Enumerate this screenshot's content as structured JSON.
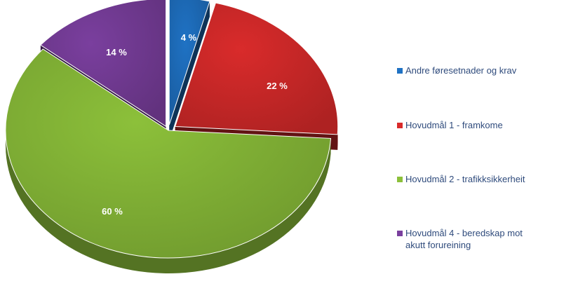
{
  "chart_data": {
    "type": "pie",
    "style": "3d-exploded",
    "slices": [
      {
        "label": "Andre føresetnader og krav",
        "value": 4,
        "value_label": "4 %",
        "color": "#1f72c4"
      },
      {
        "label": "Hovudmål 1 - framkome",
        "value": 22,
        "value_label": "22 %",
        "color": "#d92b2b"
      },
      {
        "label": "Hovudmål 2 - trafikksikkerheit",
        "value": 60,
        "value_label": "60 %",
        "color": "#8cc03a"
      },
      {
        "label": "Hovudmål 4 - beredskap mot\nakutt forureining",
        "value": 14,
        "value_label": "14 %",
        "color": "#7a3f9e"
      }
    ],
    "legend_position": "right"
  }
}
